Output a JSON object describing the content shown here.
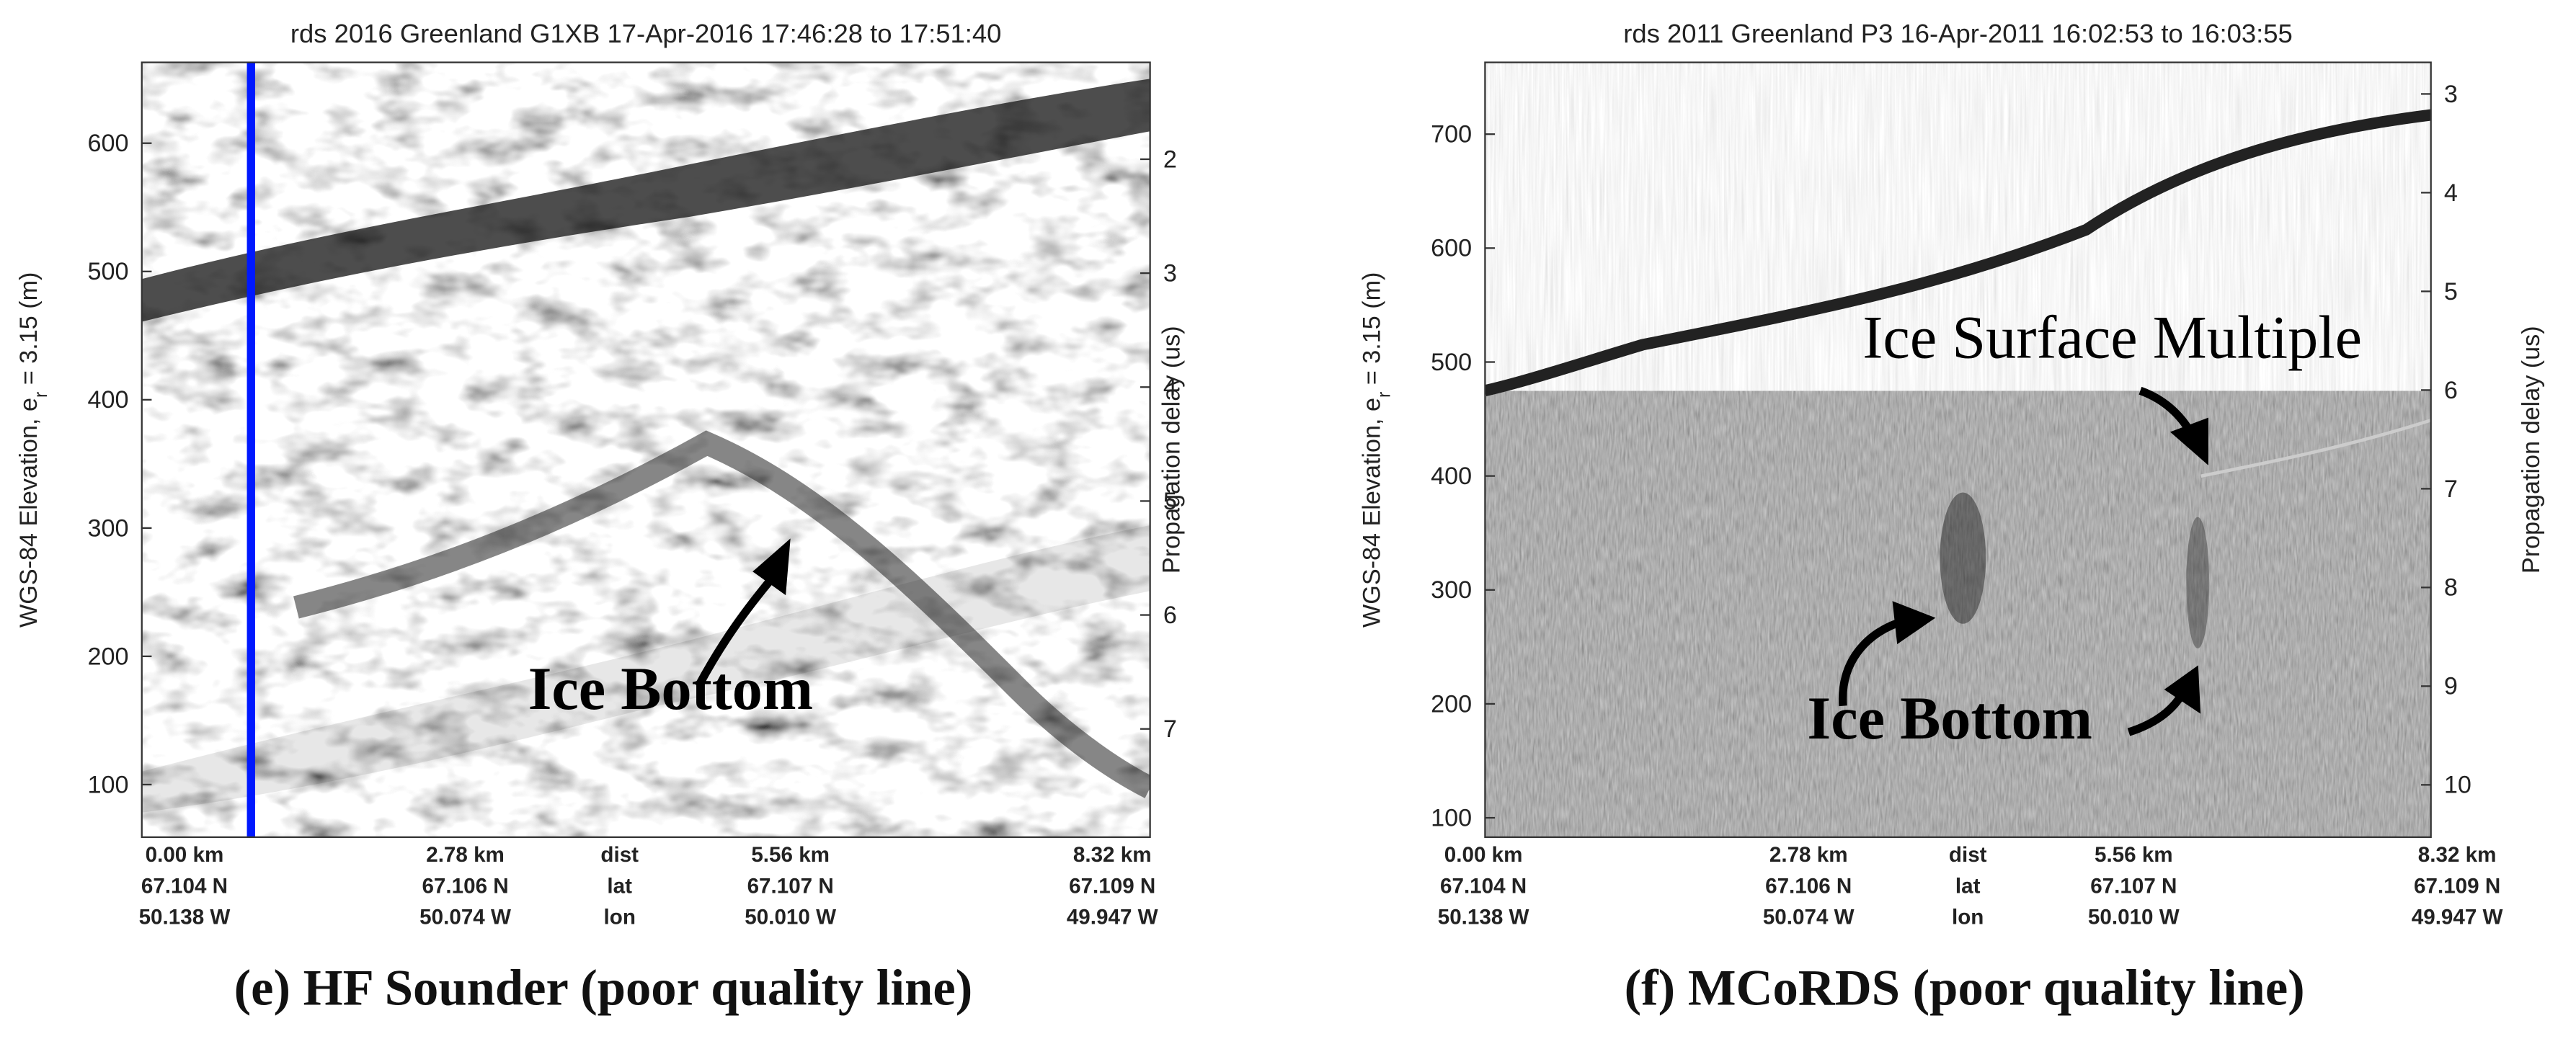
{
  "chart_data": [
    {
      "type": "echogram",
      "title": "rds 2016 Greenland G1XB 17-Apr-2016 17:46:28 to 17:51:40",
      "ylabel": [
        "WGS-84 Elevation, e",
        "r",
        " = 3.15 (m)"
      ],
      "y2label": "Propagation delay (us)",
      "ylim": [
        59,
        663
      ],
      "yticks": [
        100,
        200,
        300,
        400,
        500,
        600
      ],
      "y2lim": [
        7.95,
        1.15
      ],
      "y2ticks": [
        2,
        3,
        4,
        5,
        6,
        7
      ],
      "annotations": [
        "Ice Bottom"
      ],
      "footer": [
        [
          "0.00 km",
          "2.78 km",
          "dist",
          "5.56 km",
          "8.32 km"
        ],
        [
          "67.104 N",
          "67.106 N",
          "lat",
          "67.107 N",
          "67.109 N"
        ],
        [
          "50.138 W",
          "50.074 W",
          "lon",
          "50.010 W",
          "49.947 W"
        ]
      ],
      "caption": "(e) HF Sounder (poor quality line)"
    },
    {
      "type": "echogram",
      "title": "rds 2011 Greenland P3 16-Apr-2011 16:02:53 to 16:03:55",
      "ylabel": [
        "WGS-84 Elevation, e",
        "r",
        " = 3.15 (m)"
      ],
      "y2label": "Propagation delay (us)",
      "ylim": [
        83,
        763
      ],
      "yticks": [
        100,
        200,
        300,
        400,
        500,
        600,
        700
      ],
      "y2lim": [
        10.53,
        2.68
      ],
      "y2ticks": [
        3,
        4,
        5,
        6,
        7,
        8,
        9,
        10
      ],
      "annotations": [
        "Ice Surface Multiple",
        "Ice Bottom"
      ],
      "footer": [
        [
          "0.00 km",
          "2.78 km",
          "dist",
          "5.56 km",
          "8.32 km"
        ],
        [
          "67.104 N",
          "67.106 N",
          "lat",
          "67.107 N",
          "67.109 N"
        ],
        [
          "50.138 W",
          "50.074 W",
          "lon",
          "50.010 W",
          "49.947 W"
        ]
      ],
      "caption": "(f) MCoRDS (poor quality line)"
    }
  ]
}
